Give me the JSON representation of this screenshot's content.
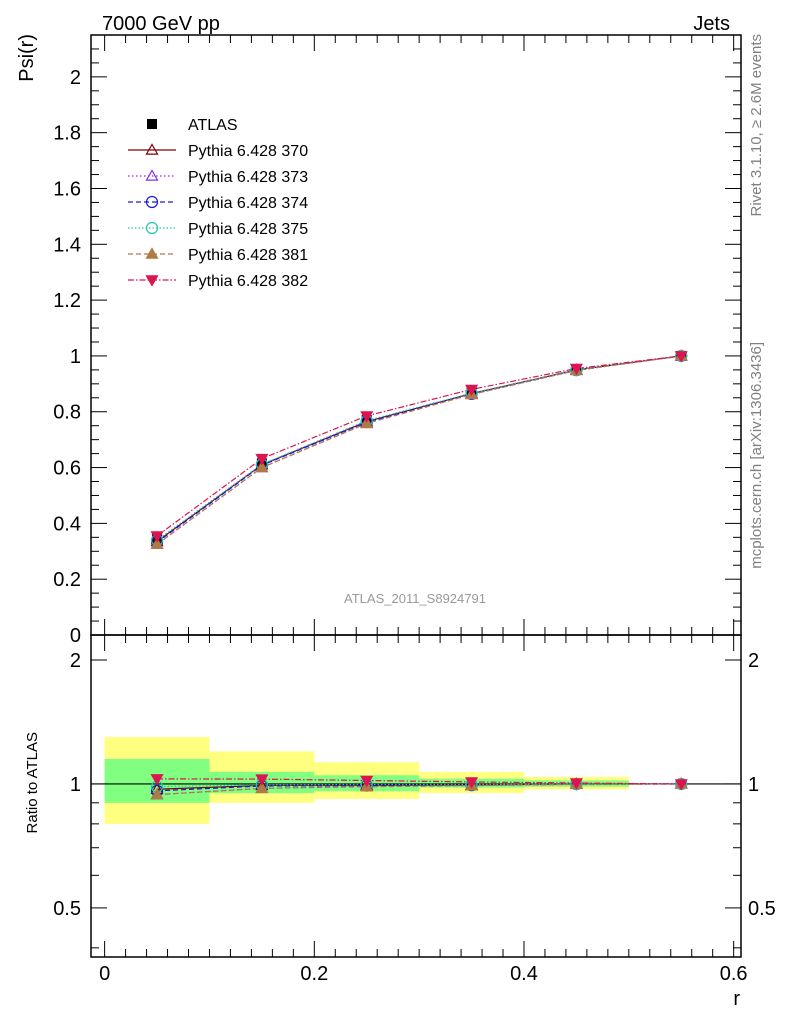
{
  "header": {
    "left": "7000 GeV pp",
    "right": "Jets"
  },
  "side_labels": {
    "rivet": "Rivet 3.1.10, ≥ 2.6M events",
    "mcplots": "mcplots.cern.ch [arXiv:1306.3436]"
  },
  "watermark": "ATLAS_2011_S8924791",
  "chart_data": {
    "type": "line",
    "top_panel": {
      "ylabel": "Psi(r)",
      "ylim": [
        0,
        2.15
      ],
      "yticks": [
        0,
        0.2,
        0.4,
        0.6,
        0.8,
        1,
        1.2,
        1.4,
        1.6,
        1.8,
        2
      ],
      "ytick_labels": [
        "0",
        "0.2",
        "0.4",
        "0.6",
        "0.8",
        "1",
        "1.2",
        "1.4",
        "1.6",
        "1.8",
        "2"
      ]
    },
    "ratio_panel": {
      "ylabel": "Ratio to ATLAS",
      "scale": "log",
      "ylim": [
        0.38,
        2.3
      ],
      "yticks": [
        0.5,
        1,
        2
      ],
      "ytick_labels": [
        "0.5",
        "1",
        "2"
      ]
    },
    "xlabel": "r",
    "xlim": [
      -0.013,
      0.607
    ],
    "xticks": [
      0,
      0.2,
      0.4,
      0.6
    ],
    "xtick_labels": [
      "0",
      "0.2",
      "0.4",
      "0.6"
    ],
    "x": [
      0.05,
      0.15,
      0.25,
      0.35,
      0.45,
      0.55
    ],
    "bin_edges": [
      0.0,
      0.1,
      0.2,
      0.3,
      0.4,
      0.5,
      0.6
    ],
    "data": {
      "name": "ATLAS",
      "values": [
        0.345,
        0.615,
        0.77,
        0.87,
        0.95,
        1.0
      ]
    },
    "bands": {
      "inner": [
        [
          0.9,
          1.15
        ],
        [
          0.95,
          1.07
        ],
        [
          0.96,
          1.05
        ],
        [
          0.98,
          1.03
        ],
        [
          0.985,
          1.02
        ],
        [
          1.0,
          1.0
        ]
      ],
      "outer": [
        [
          0.8,
          1.3
        ],
        [
          0.9,
          1.2
        ],
        [
          0.92,
          1.13
        ],
        [
          0.95,
          1.07
        ],
        [
          0.97,
          1.04
        ],
        [
          1.0,
          1.0
        ]
      ]
    },
    "series": [
      {
        "name": "Pythia 6.428 370",
        "values": [
          0.335,
          0.61,
          0.765,
          0.865,
          0.95,
          1.0
        ],
        "color": "#800000",
        "marker": "triangle-open",
        "dash": ""
      },
      {
        "name": "Pythia 6.428 373",
        "values": [
          0.325,
          0.6,
          0.76,
          0.862,
          0.948,
          1.0
        ],
        "color": "#8a2be2",
        "marker": "triangle-open",
        "dash": "1.5,2.5"
      },
      {
        "name": "Pythia 6.428 374",
        "values": [
          0.332,
          0.608,
          0.763,
          0.864,
          0.949,
          1.0
        ],
        "color": "#1a1adc",
        "marker": "circle-open",
        "dash": "5,3"
      },
      {
        "name": "Pythia 6.428 375",
        "values": [
          0.34,
          0.612,
          0.768,
          0.867,
          0.95,
          1.0
        ],
        "color": "#20c8b0",
        "marker": "circle-open",
        "dash": "1.5,2"
      },
      {
        "name": "Pythia 6.428 381",
        "values": [
          0.325,
          0.6,
          0.758,
          0.862,
          0.948,
          1.0
        ],
        "color": "#b07a45",
        "marker": "triangle-filled",
        "dash": "5,3"
      },
      {
        "name": "Pythia 6.428 382",
        "values": [
          0.355,
          0.632,
          0.785,
          0.88,
          0.955,
          1.0
        ],
        "color": "#dc1450",
        "marker": "triangle-down-filled",
        "dash": "6,2,1.5,2"
      }
    ],
    "legend_position": "top-left",
    "grid": false
  }
}
